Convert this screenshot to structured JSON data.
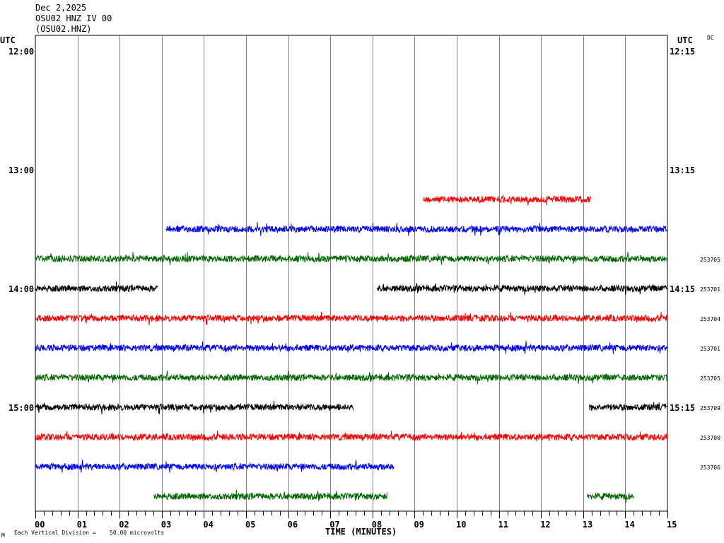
{
  "header": {
    "date": "Dec 2,2025",
    "station": "OSU02 HNZ IV 00",
    "channel": "(OSU02.HNZ)"
  },
  "left_axis": {
    "unit": "UTC",
    "times": [
      "12:00",
      "13:00",
      "14:00",
      "15:00"
    ]
  },
  "right_axis": {
    "unit": "UTC",
    "flag": "DC",
    "times": [
      "12:15",
      "13:15",
      "14:15",
      "15:15"
    ]
  },
  "footer": {
    "xlabel": "TIME (MINUTES)",
    "scale_note": "Each Vertical Division =",
    "scale_value": "50.00 microvolts",
    "corner_mark": "M"
  },
  "colors": {
    "black": "#000000",
    "red": "#ff0000",
    "blue": "#0000ff",
    "green": "#006600",
    "grid": "#808080"
  },
  "chart_data": {
    "type": "line",
    "title": "OSU02 HNZ IV 00",
    "xlabel": "TIME (MINUTES)",
    "x_ticks": [
      "00",
      "01",
      "02",
      "03",
      "04",
      "05",
      "06",
      "07",
      "08",
      "09",
      "10",
      "11",
      "12",
      "13",
      "14",
      "15"
    ],
    "xlim": [
      0,
      15
    ],
    "grid": true,
    "rows_per_hour": 4,
    "traces": [
      {
        "row": 5,
        "start_min": 9.2,
        "end_min": 13.2,
        "color": "red",
        "code": ""
      },
      {
        "row": 6,
        "start_min": 3.1,
        "end_min": 15.0,
        "color": "blue",
        "code": ""
      },
      {
        "row": 7,
        "start_min": 0.0,
        "end_min": 15.0,
        "color": "green",
        "code": "253705"
      },
      {
        "row": 8,
        "start_min": 0.0,
        "end_min": 2.9,
        "color": "black",
        "code": "253701"
      },
      {
        "row": 8,
        "start_min": 8.1,
        "end_min": 15.0,
        "color": "black",
        "code": ""
      },
      {
        "row": 9,
        "start_min": 0.0,
        "end_min": 15.0,
        "color": "red",
        "code": "253704"
      },
      {
        "row": 10,
        "start_min": 0.0,
        "end_min": 15.0,
        "color": "blue",
        "code": "253701"
      },
      {
        "row": 11,
        "start_min": 0.0,
        "end_min": 15.0,
        "color": "green",
        "code": "253705"
      },
      {
        "row": 12,
        "start_min": 0.0,
        "end_min": 7.55,
        "color": "black",
        "code": "253709"
      },
      {
        "row": 12,
        "start_min": 13.15,
        "end_min": 15.0,
        "color": "black",
        "code": ""
      },
      {
        "row": 13,
        "start_min": 0.0,
        "end_min": 15.0,
        "color": "red",
        "code": "253700"
      },
      {
        "row": 14,
        "start_min": 0.0,
        "end_min": 8.5,
        "color": "blue",
        "code": "253706"
      },
      {
        "row": 15,
        "start_min": 2.8,
        "end_min": 8.35,
        "color": "green",
        "code": ""
      },
      {
        "row": 15,
        "start_min": 13.1,
        "end_min": 14.2,
        "color": "green",
        "code": ""
      }
    ]
  }
}
